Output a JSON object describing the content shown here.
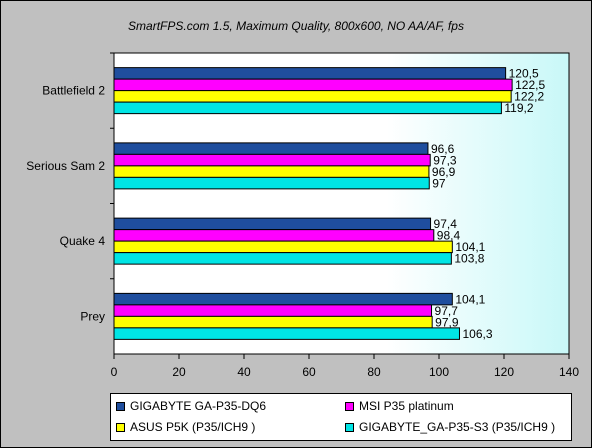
{
  "chart_data": {
    "type": "bar",
    "orientation": "horizontal",
    "title": "SmartFPS.com 1.5, Maximum Quality, 800x600, NO AA/AF, fps",
    "categories": [
      "Battlefield 2",
      "Serious Sam 2",
      "Quake 4",
      "Prey"
    ],
    "series": [
      {
        "name": "GIGABYTE GA-P35-DQ6",
        "color": "#1f4e9e",
        "values": [
          120.5,
          96.6,
          97.4,
          104.1
        ],
        "labels": [
          "120,5",
          "96,6",
          "97,4",
          "104,1"
        ]
      },
      {
        "name": "MSI P35 platinum",
        "color": "#ff00ff",
        "values": [
          122.5,
          97.3,
          98.4,
          97.7
        ],
        "labels": [
          "122,5",
          "97,3",
          "98,4",
          "97,7"
        ]
      },
      {
        "name": "ASUS P5K (P35/ICH9 )",
        "color": "#ffff00",
        "values": [
          122.2,
          96.9,
          104.1,
          97.9
        ],
        "labels": [
          "122,2",
          "96,9",
          "104,1",
          "97,9"
        ]
      },
      {
        "name": "GIGABYTE_GA-P35-S3 (P35/ICH9 )",
        "color": "#00e5e5",
        "values": [
          119.2,
          97,
          103.8,
          106.3
        ],
        "labels": [
          "119,2",
          "97",
          "103,8",
          "106,3"
        ]
      }
    ],
    "xlim": [
      0,
      140
    ],
    "xticks": [
      0,
      20,
      40,
      60,
      80,
      100,
      120,
      140
    ],
    "xticklabels": [
      "0",
      "20",
      "40",
      "60",
      "80",
      "100",
      "120",
      "140"
    ],
    "grid": false,
    "legend_position": "bottom",
    "plot_background": "gradient white to light cyan"
  }
}
